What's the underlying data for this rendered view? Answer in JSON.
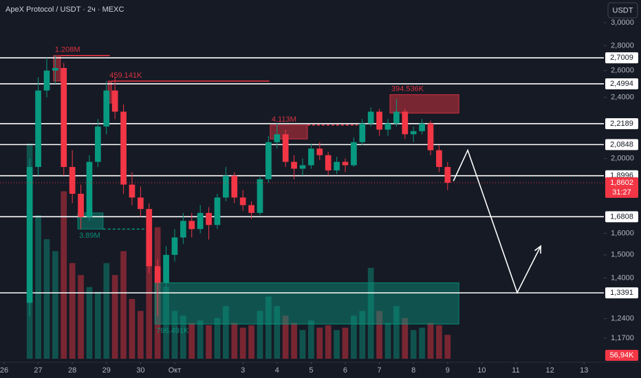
{
  "chart_data": {
    "type": "candlestick",
    "title": "ApeX Protocol / USDT · 2ч · MEXC",
    "currency_button": "USDT",
    "log_scale": true,
    "up_color": "#089981",
    "down_color": "#f23645",
    "xlim": [
      -0.12,
      17.58
    ],
    "xticks": [
      {
        "value": 0,
        "label": "26"
      },
      {
        "value": 1,
        "label": "27"
      },
      {
        "value": 2,
        "label": "28"
      },
      {
        "value": 3,
        "label": "29"
      },
      {
        "value": 4,
        "label": "30"
      },
      {
        "value": 5,
        "label": "Окт"
      },
      {
        "value": 7,
        "label": "3"
      },
      {
        "value": 8,
        "label": "4"
      },
      {
        "value": 9,
        "label": "5"
      },
      {
        "value": 10,
        "label": "6"
      },
      {
        "value": 11,
        "label": "7"
      },
      {
        "value": 12,
        "label": "8"
      },
      {
        "value": 13,
        "label": "9"
      },
      {
        "value": 14,
        "label": "10"
      },
      {
        "value": 15,
        "label": "11"
      },
      {
        "value": 16,
        "label": "12"
      },
      {
        "value": 17,
        "label": "13"
      }
    ],
    "ylim": [
      1.1,
      3.21
    ],
    "yticks": [
      {
        "value": 3.0,
        "label": "3,0000"
      },
      {
        "value": 2.8,
        "label": "2,8000"
      },
      {
        "value": 2.6,
        "label": "2,6000"
      },
      {
        "value": 2.4,
        "label": "2,4000"
      },
      {
        "value": 2.0,
        "label": "2,0000"
      },
      {
        "value": 1.6,
        "label": "1,6000"
      },
      {
        "value": 1.5,
        "label": "1,5000"
      },
      {
        "value": 1.4,
        "label": "1,4000"
      },
      {
        "value": 1.24,
        "label": "1,2400"
      },
      {
        "value": 1.17,
        "label": "1,1700"
      }
    ],
    "x": [
      0.75,
      1,
      1.25,
      1.5,
      1.75,
      2,
      2.25,
      2.5,
      2.75,
      3,
      3.25,
      3.5,
      3.75,
      4,
      4.25,
      4.5,
      4.75,
      5,
      5.25,
      5.5,
      5.75,
      6,
      6.25,
      6.5,
      6.75,
      7,
      7.25,
      7.5,
      7.75,
      8,
      8.25,
      8.5,
      8.75,
      9,
      9.25,
      9.5,
      9.75,
      10,
      10.25,
      10.5,
      10.75,
      11,
      11.25,
      11.5,
      11.75,
      12,
      12.25,
      12.5,
      12.75,
      13
    ],
    "open": [
      1.3,
      1.95,
      2.45,
      2.6,
      2.62,
      1.95,
      1.8,
      1.68,
      1.98,
      2.2,
      2.45,
      2.3,
      1.85,
      1.78,
      1.72,
      1.45,
      1.38,
      1.5,
      1.58,
      1.66,
      1.62,
      1.7,
      1.64,
      1.78,
      1.9,
      1.78,
      1.74,
      1.7,
      1.88,
      2.1,
      2.15,
      1.98,
      1.94,
      1.96,
      2.06,
      2.02,
      1.93,
      1.98,
      1.96,
      2.1,
      2.22,
      2.3,
      2.18,
      2.22,
      2.3,
      2.15,
      2.17,
      2.22,
      2.05,
      1.95
    ],
    "high": [
      2.0,
      2.55,
      2.7,
      2.72,
      2.66,
      2.05,
      1.85,
      2.02,
      2.25,
      2.52,
      2.55,
      2.35,
      1.92,
      1.84,
      1.75,
      1.48,
      1.54,
      1.62,
      1.7,
      1.7,
      1.74,
      1.73,
      1.8,
      1.95,
      1.92,
      1.82,
      1.76,
      1.9,
      2.14,
      2.22,
      2.18,
      2.02,
      2.0,
      2.09,
      2.1,
      2.04,
      2.01,
      2.0,
      2.13,
      2.25,
      2.33,
      2.32,
      2.25,
      2.39,
      2.32,
      2.2,
      2.25,
      2.24,
      2.08,
      1.98
    ],
    "low": [
      1.25,
      1.9,
      2.4,
      2.5,
      1.9,
      1.75,
      1.62,
      1.66,
      1.95,
      2.15,
      2.25,
      1.8,
      1.74,
      1.68,
      1.42,
      1.25,
      1.36,
      1.47,
      1.55,
      1.58,
      1.6,
      1.57,
      1.62,
      1.76,
      1.75,
      1.71,
      1.67,
      1.69,
      1.86,
      2.06,
      1.95,
      1.88,
      1.9,
      1.94,
      1.99,
      1.9,
      1.91,
      1.92,
      1.95,
      2.08,
      2.2,
      2.14,
      2.14,
      2.2,
      2.12,
      2.1,
      2.15,
      2.02,
      1.92,
      1.82
    ],
    "close": [
      1.95,
      2.45,
      2.6,
      2.62,
      1.95,
      1.8,
      1.68,
      1.98,
      2.2,
      2.45,
      2.3,
      1.85,
      1.78,
      1.72,
      1.45,
      1.38,
      1.5,
      1.58,
      1.66,
      1.62,
      1.7,
      1.64,
      1.78,
      1.9,
      1.78,
      1.74,
      1.7,
      1.88,
      2.1,
      2.15,
      1.98,
      1.94,
      1.96,
      2.06,
      2.02,
      1.93,
      1.98,
      1.96,
      2.1,
      2.22,
      2.3,
      2.18,
      2.22,
      2.3,
      2.15,
      2.17,
      2.22,
      2.05,
      1.95,
      1.86
    ],
    "volumes": [
      900,
      600,
      500,
      450,
      700,
      400,
      350,
      300,
      280,
      400,
      350,
      450,
      250,
      200,
      500,
      550,
      300,
      200,
      180,
      150,
      160,
      140,
      170,
      220,
      150,
      130,
      140,
      200,
      260,
      220,
      180,
      150,
      120,
      160,
      130,
      140,
      120,
      130,
      180,
      200,
      380,
      200,
      150,
      220,
      170,
      120,
      130,
      150,
      140,
      100
    ],
    "volume_ylim": [
      0,
      1500
    ],
    "volume_label": "56,94K",
    "levels": {
      "values": [
        2.7009,
        2.4994,
        2.2189,
        2.0848,
        1.8996,
        1.6808,
        1.3391
      ],
      "value_labels": [
        "2,7009",
        "2,4994",
        "2,2189",
        "2,0848",
        "1,8996",
        "1,6808",
        "1,3391"
      ]
    },
    "last_price": 1.8602,
    "last_price_label": "1,8602",
    "countdown": "31:27",
    "zones": [
      {
        "label": "1.208M",
        "x": [
          1.45,
          1.65
        ],
        "y": [
          2.52,
          2.72
        ],
        "color": "#f23645",
        "line_to": 3.1
      },
      {
        "label": "459.141K",
        "x": [
          3.05,
          3.15
        ],
        "y": [
          2.36,
          2.52
        ],
        "color": "#f23645",
        "line_to": 7.78
      },
      {
        "label": "4.113M",
        "x": [
          7.8,
          8.89
        ],
        "y": [
          2.12,
          2.21
        ],
        "color": "#f23645",
        "line_to": 10.36
      },
      {
        "label": "394.536K",
        "x": [
          11.31,
          13.33
        ],
        "y": [
          2.29,
          2.42
        ],
        "color": "#f23645"
      },
      {
        "label": "3.89M",
        "x": [
          2.16,
          2.9
        ],
        "y": [
          1.62,
          1.7
        ],
        "color": "#089981",
        "line_to": 4.11
      },
      {
        "label": "796.491K",
        "x": [
          4.42,
          13.33
        ],
        "y": [
          1.22,
          1.38
        ],
        "color": "#089981"
      }
    ],
    "projection": {
      "x": [
        13.17,
        13.59,
        15.04,
        15.73
      ],
      "y": [
        1.87,
        2.05,
        1.34,
        1.54
      ]
    }
  }
}
